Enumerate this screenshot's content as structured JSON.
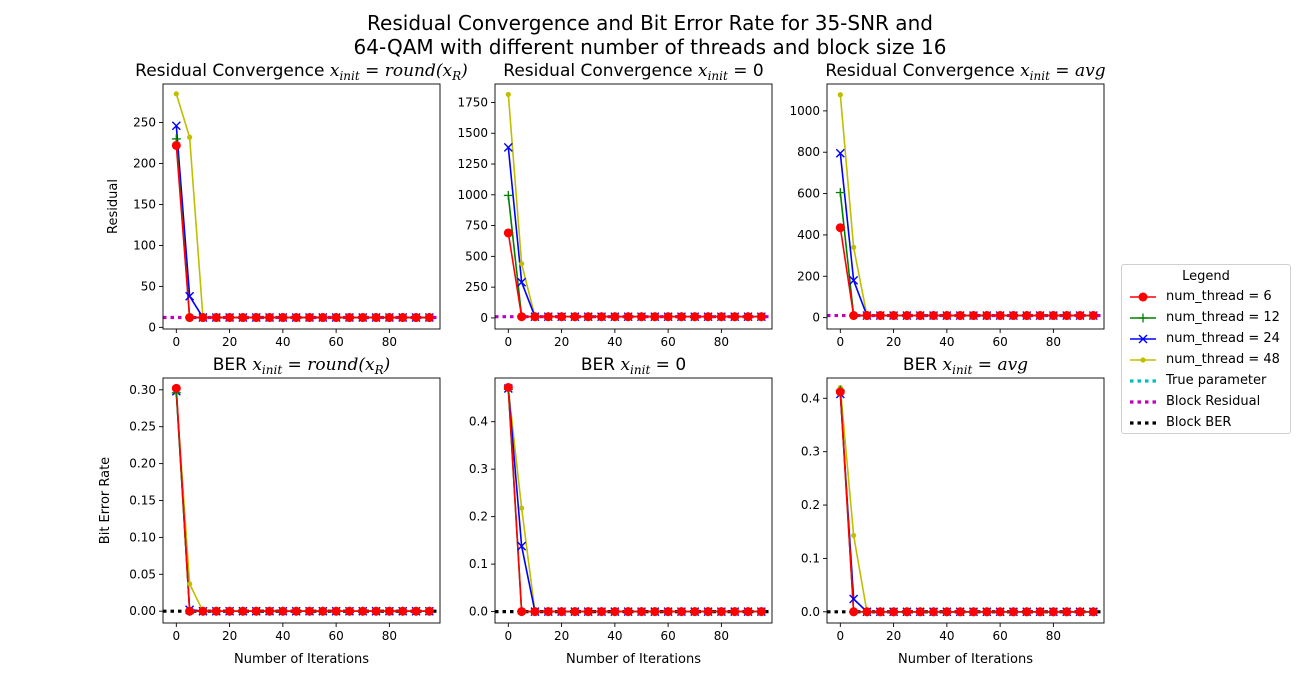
{
  "suptitle": {
    "line1": "Residual Convergence and Bit Error Rate for 35-SNR and",
    "line2": "64-QAM with different number of threads and block size 16"
  },
  "legend": {
    "title": "Legend",
    "items": [
      {
        "label": "num_thread = 6",
        "color": "#ff0000",
        "style": "solid",
        "marker": "circle"
      },
      {
        "label": "num_thread = 12",
        "color": "#008000",
        "style": "solid",
        "marker": "plus"
      },
      {
        "label": "num_thread = 24",
        "color": "#0000ff",
        "style": "solid",
        "marker": "x"
      },
      {
        "label": "num_thread = 48",
        "color": "#bfbf00",
        "style": "solid",
        "marker": "dot"
      },
      {
        "label": "True parameter",
        "color": "#00bfbf",
        "style": "dotted",
        "marker": "none"
      },
      {
        "label": "Block Residual",
        "color": "#bf00bf",
        "style": "dotted",
        "marker": "none"
      },
      {
        "label": "Block BER",
        "color": "#000000",
        "style": "dotted",
        "marker": "none"
      }
    ]
  },
  "chart_data": [
    {
      "type": "line",
      "title_prefix": "Residual Convergence ",
      "title_math": "x_init = round(x_R)",
      "xlabel": "",
      "ylabel": "Residual",
      "xlim": [
        -5,
        99
      ],
      "ylim": [
        -2,
        297
      ],
      "xticks": [
        0,
        20,
        40,
        60,
        80
      ],
      "yticks": [
        0,
        50,
        100,
        150,
        200,
        250
      ],
      "x": [
        0,
        5,
        10,
        15,
        20,
        25,
        30,
        35,
        40,
        45,
        50,
        55,
        60,
        65,
        70,
        75,
        80,
        85,
        90,
        95
      ],
      "series": [
        {
          "name": "num_thread = 6",
          "values": [
            222,
            12,
            12,
            12,
            12,
            12,
            12,
            12,
            12,
            12,
            12,
            12,
            12,
            12,
            12,
            12,
            12,
            12,
            12,
            12
          ]
        },
        {
          "name": "num_thread = 12",
          "values": [
            230,
            12,
            12,
            12,
            12,
            12,
            12,
            12,
            12,
            12,
            12,
            12,
            12,
            12,
            12,
            12,
            12,
            12,
            12,
            12
          ]
        },
        {
          "name": "num_thread = 24",
          "values": [
            246,
            38,
            12,
            12,
            12,
            12,
            12,
            12,
            12,
            12,
            12,
            12,
            12,
            12,
            12,
            12,
            12,
            12,
            12,
            12
          ]
        },
        {
          "name": "num_thread = 48",
          "values": [
            285,
            232,
            12,
            12,
            12,
            12,
            12,
            12,
            12,
            12,
            12,
            12,
            12,
            12,
            12,
            12,
            12,
            12,
            12,
            12
          ]
        }
      ],
      "hlines": [
        {
          "name": "Block Residual",
          "y": 12
        }
      ]
    },
    {
      "type": "line",
      "title_prefix": "Residual Convergence ",
      "title_math": "x_init = 0",
      "xlabel": "",
      "ylabel": "",
      "xlim": [
        -5,
        99
      ],
      "ylim": [
        -90,
        1900
      ],
      "xticks": [
        0,
        20,
        40,
        60,
        80
      ],
      "yticks": [
        0,
        250,
        500,
        750,
        1000,
        1250,
        1500,
        1750
      ],
      "x": [
        0,
        5,
        10,
        15,
        20,
        25,
        30,
        35,
        40,
        45,
        50,
        55,
        60,
        65,
        70,
        75,
        80,
        85,
        90,
        95
      ],
      "series": [
        {
          "name": "num_thread = 6",
          "values": [
            690,
            10,
            10,
            10,
            10,
            10,
            10,
            10,
            10,
            10,
            10,
            10,
            10,
            10,
            10,
            10,
            10,
            10,
            10,
            10
          ]
        },
        {
          "name": "num_thread = 12",
          "values": [
            995,
            10,
            10,
            10,
            10,
            10,
            10,
            10,
            10,
            10,
            10,
            10,
            10,
            10,
            10,
            10,
            10,
            10,
            10,
            10
          ]
        },
        {
          "name": "num_thread = 24",
          "values": [
            1385,
            290,
            10,
            10,
            10,
            10,
            10,
            10,
            10,
            10,
            10,
            10,
            10,
            10,
            10,
            10,
            10,
            10,
            10,
            10
          ]
        },
        {
          "name": "num_thread = 48",
          "values": [
            1815,
            440,
            10,
            10,
            10,
            10,
            10,
            10,
            10,
            10,
            10,
            10,
            10,
            10,
            10,
            10,
            10,
            10,
            10,
            10
          ]
        }
      ],
      "hlines": [
        {
          "name": "Block Residual",
          "y": 10
        }
      ]
    },
    {
      "type": "line",
      "title_prefix": "Residual Convergence ",
      "title_math": "x_init = avg",
      "xlabel": "",
      "ylabel": "",
      "xlim": [
        -5,
        99
      ],
      "ylim": [
        -55,
        1130
      ],
      "xticks": [
        0,
        20,
        40,
        60,
        80
      ],
      "yticks": [
        0,
        200,
        400,
        600,
        800,
        1000
      ],
      "x": [
        0,
        5,
        10,
        15,
        20,
        25,
        30,
        35,
        40,
        45,
        50,
        55,
        60,
        65,
        70,
        75,
        80,
        85,
        90,
        95
      ],
      "series": [
        {
          "name": "num_thread = 6",
          "values": [
            435,
            10,
            10,
            10,
            10,
            10,
            10,
            10,
            10,
            10,
            10,
            10,
            10,
            10,
            10,
            10,
            10,
            10,
            10,
            10
          ]
        },
        {
          "name": "num_thread = 12",
          "values": [
            605,
            10,
            10,
            10,
            10,
            10,
            10,
            10,
            10,
            10,
            10,
            10,
            10,
            10,
            10,
            10,
            10,
            10,
            10,
            10
          ]
        },
        {
          "name": "num_thread = 24",
          "values": [
            795,
            180,
            10,
            10,
            10,
            10,
            10,
            10,
            10,
            10,
            10,
            10,
            10,
            10,
            10,
            10,
            10,
            10,
            10,
            10
          ]
        },
        {
          "name": "num_thread = 48",
          "values": [
            1078,
            340,
            10,
            10,
            10,
            10,
            10,
            10,
            10,
            10,
            10,
            10,
            10,
            10,
            10,
            10,
            10,
            10,
            10,
            10
          ]
        }
      ],
      "hlines": [
        {
          "name": "Block Residual",
          "y": 10
        }
      ]
    },
    {
      "type": "line",
      "title_prefix": "BER ",
      "title_math": "x_init = round(x_R)",
      "xlabel": "Number of Iterations",
      "ylabel": "Bit Error Rate",
      "xlim": [
        -5,
        99
      ],
      "ylim": [
        -0.016,
        0.316
      ],
      "xticks": [
        0,
        20,
        40,
        60,
        80
      ],
      "yticks": [
        "0.00",
        "0.05",
        "0.10",
        "0.15",
        "0.20",
        "0.25",
        "0.30"
      ],
      "x": [
        0,
        5,
        10,
        15,
        20,
        25,
        30,
        35,
        40,
        45,
        50,
        55,
        60,
        65,
        70,
        75,
        80,
        85,
        90,
        95
      ],
      "series": [
        {
          "name": "num_thread = 6",
          "values": [
            0.302,
            0,
            0,
            0,
            0,
            0,
            0,
            0,
            0,
            0,
            0,
            0,
            0,
            0,
            0,
            0,
            0,
            0,
            0,
            0
          ]
        },
        {
          "name": "num_thread = 12",
          "values": [
            0.296,
            0,
            0,
            0,
            0,
            0,
            0,
            0,
            0,
            0,
            0,
            0,
            0,
            0,
            0,
            0,
            0,
            0,
            0,
            0
          ]
        },
        {
          "name": "num_thread = 24",
          "values": [
            0.298,
            0.002,
            0,
            0,
            0,
            0,
            0,
            0,
            0,
            0,
            0,
            0,
            0,
            0,
            0,
            0,
            0,
            0,
            0,
            0
          ]
        },
        {
          "name": "num_thread = 48",
          "values": [
            0.296,
            0.037,
            0,
            0,
            0,
            0,
            0,
            0,
            0,
            0,
            0,
            0,
            0,
            0,
            0,
            0,
            0,
            0,
            0,
            0
          ]
        }
      ],
      "hlines": [
        {
          "name": "Block BER",
          "y": 0
        }
      ]
    },
    {
      "type": "line",
      "title_prefix": "BER ",
      "title_math": "x_init = 0",
      "xlabel": "Number of Iterations",
      "ylabel": "",
      "xlim": [
        -5,
        99
      ],
      "ylim": [
        -0.024,
        0.492
      ],
      "xticks": [
        0,
        20,
        40,
        60,
        80
      ],
      "yticks": [
        "0.0",
        "0.1",
        "0.2",
        "0.3",
        "0.4"
      ],
      "x": [
        0,
        5,
        10,
        15,
        20,
        25,
        30,
        35,
        40,
        45,
        50,
        55,
        60,
        65,
        70,
        75,
        80,
        85,
        90,
        95
      ],
      "series": [
        {
          "name": "num_thread = 6",
          "values": [
            0.472,
            0,
            0,
            0,
            0,
            0,
            0,
            0,
            0,
            0,
            0,
            0,
            0,
            0,
            0,
            0,
            0,
            0,
            0,
            0
          ]
        },
        {
          "name": "num_thread = 12",
          "values": [
            0.468,
            0,
            0,
            0,
            0,
            0,
            0,
            0,
            0,
            0,
            0,
            0,
            0,
            0,
            0,
            0,
            0,
            0,
            0,
            0
          ]
        },
        {
          "name": "num_thread = 24",
          "values": [
            0.47,
            0.138,
            0,
            0,
            0,
            0,
            0,
            0,
            0,
            0,
            0,
            0,
            0,
            0,
            0,
            0,
            0,
            0,
            0,
            0
          ]
        },
        {
          "name": "num_thread = 48",
          "values": [
            0.47,
            0.218,
            0,
            0,
            0,
            0,
            0,
            0,
            0,
            0,
            0,
            0,
            0,
            0,
            0,
            0,
            0,
            0,
            0,
            0
          ]
        }
      ],
      "hlines": [
        {
          "name": "Block BER",
          "y": 0
        }
      ]
    },
    {
      "type": "line",
      "title_prefix": "BER ",
      "title_math": "x_init = avg",
      "xlabel": "Number of Iterations",
      "ylabel": "",
      "xlim": [
        -5,
        99
      ],
      "ylim": [
        -0.021,
        0.438
      ],
      "xticks": [
        0,
        20,
        40,
        60,
        80
      ],
      "yticks": [
        "0.0",
        "0.1",
        "0.2",
        "0.3",
        "0.4"
      ],
      "x": [
        0,
        5,
        10,
        15,
        20,
        25,
        30,
        35,
        40,
        45,
        50,
        55,
        60,
        65,
        70,
        75,
        80,
        85,
        90,
        95
      ],
      "series": [
        {
          "name": "num_thread = 6",
          "values": [
            0.412,
            0,
            0,
            0,
            0,
            0,
            0,
            0,
            0,
            0,
            0,
            0,
            0,
            0,
            0,
            0,
            0,
            0,
            0,
            0
          ]
        },
        {
          "name": "num_thread = 12",
          "values": [
            0.415,
            0,
            0,
            0,
            0,
            0,
            0,
            0,
            0,
            0,
            0,
            0,
            0,
            0,
            0,
            0,
            0,
            0,
            0,
            0
          ]
        },
        {
          "name": "num_thread = 24",
          "values": [
            0.408,
            0.024,
            0,
            0,
            0,
            0,
            0,
            0,
            0,
            0,
            0,
            0,
            0,
            0,
            0,
            0,
            0,
            0,
            0,
            0
          ]
        },
        {
          "name": "num_thread = 48",
          "values": [
            0.42,
            0.143,
            0,
            0,
            0,
            0,
            0,
            0,
            0,
            0,
            0,
            0,
            0,
            0,
            0,
            0,
            0,
            0,
            0,
            0
          ]
        }
      ],
      "hlines": [
        {
          "name": "Block BER",
          "y": 0
        }
      ]
    }
  ]
}
